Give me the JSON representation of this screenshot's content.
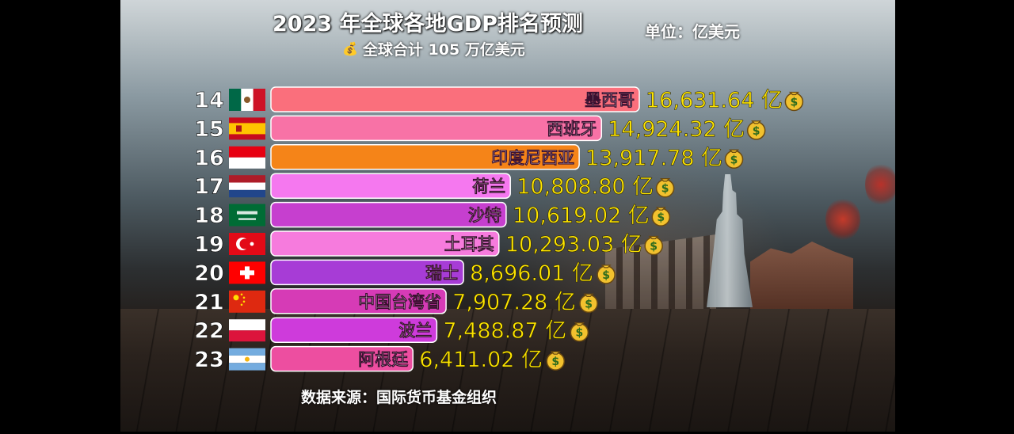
{
  "title": "2023 年全球各地GDP排名预测",
  "unit": "单位：亿美元",
  "total": "全球合计 105 万亿美元",
  "total_icon": "money-bag-icon",
  "source": "数据来源：国际货币基金组织",
  "value_suffix": "亿",
  "chart_data": {
    "type": "bar",
    "orientation": "horizontal",
    "title": "2023 年全球各地GDP排名预测",
    "unit": "亿美元",
    "xlim": [
      0,
      16631.64
    ],
    "grid": false,
    "legend": "none",
    "ranks": [
      14,
      15,
      16,
      17,
      18,
      19,
      20,
      21,
      22,
      23
    ],
    "categories": [
      "墨西哥",
      "西班牙",
      "印度尼西亚",
      "荷兰",
      "沙特",
      "土耳其",
      "瑞士",
      "中国台湾省",
      "波兰",
      "阿根廷"
    ],
    "values": [
      16631.64,
      14924.32,
      13917.78,
      10808.8,
      10619.02,
      10293.03,
      8696.01,
      7907.28,
      7488.87,
      6411.02
    ],
    "value_labels": [
      "16,631.64 亿",
      "14,924.32 亿",
      "13,917.78 亿",
      "10,808.80 亿",
      "10,619.02 亿",
      "10,293.03 亿",
      "8,696.01 亿",
      "7,907.28 亿",
      "7,488.87 亿",
      "6,411.02 亿"
    ],
    "bar_colors": [
      "#fa6f7c",
      "#f872a6",
      "#f58418",
      "#f578ef",
      "#c63fcf",
      "#f67bdd",
      "#a73cd6",
      "#d63bb6",
      "#ce3bdb",
      "#ed4ea0"
    ],
    "flags": [
      "mexico",
      "spain",
      "indonesia",
      "netherlands",
      "saudi-arabia",
      "turkey",
      "switzerland",
      "china-taiwan",
      "poland",
      "argentina"
    ]
  }
}
